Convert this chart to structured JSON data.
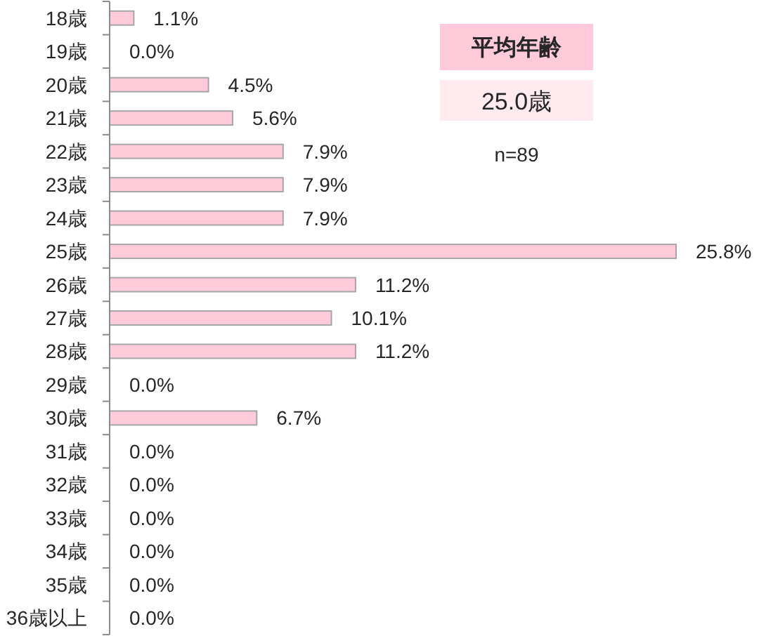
{
  "chart_data": {
    "type": "bar",
    "orientation": "horizontal",
    "categories": [
      "18歳",
      "19歳",
      "20歳",
      "21歳",
      "22歳",
      "23歳",
      "24歳",
      "25歳",
      "26歳",
      "27歳",
      "28歳",
      "29歳",
      "30歳",
      "31歳",
      "32歳",
      "33歳",
      "34歳",
      "35歳",
      "36歳以上"
    ],
    "values": [
      1.1,
      0.0,
      4.5,
      5.6,
      7.9,
      7.9,
      7.9,
      25.8,
      11.2,
      10.1,
      11.2,
      0.0,
      6.7,
      0.0,
      0.0,
      0.0,
      0.0,
      0.0,
      0.0
    ],
    "value_labels": [
      "1.1%",
      "0.0%",
      "4.5%",
      "5.6%",
      "7.9%",
      "7.9%",
      "7.9%",
      "25.8%",
      "11.2%",
      "10.1%",
      "11.2%",
      "0.0%",
      "6.7%",
      "0.0%",
      "0.0%",
      "0.0%",
      "0.0%",
      "0.0%",
      "0.0%"
    ],
    "color": "#ffcbdb",
    "annotations": [
      "平均年齢",
      "25.0歳",
      "n=89"
    ]
  }
}
